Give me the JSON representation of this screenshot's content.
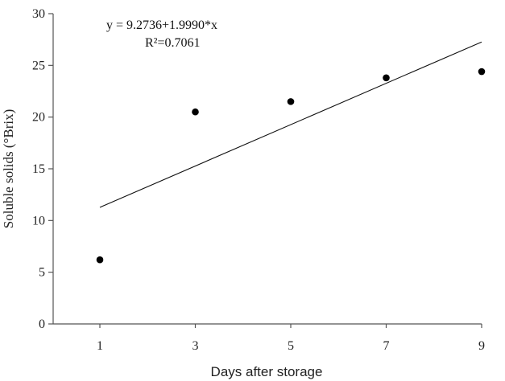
{
  "chart_data": {
    "type": "scatter",
    "title": "",
    "xlabel": "Days after storage",
    "ylabel": "Soluble solids (°Brix)",
    "xlim": [
      0,
      9
    ],
    "ylim": [
      0,
      30
    ],
    "xticks": [
      1,
      3,
      5,
      7,
      9
    ],
    "yticks": [
      0,
      5,
      10,
      15,
      20,
      25,
      30
    ],
    "grid": false,
    "legend": null,
    "series": [
      {
        "name": "Soluble solids",
        "marker": "filled-circle",
        "color": "#000000",
        "x": [
          1,
          3,
          5,
          7,
          9
        ],
        "y": [
          6.2,
          20.5,
          21.5,
          23.8,
          24.4
        ]
      }
    ],
    "regression": {
      "type": "linear",
      "intercept": 9.2736,
      "slope": 1.999,
      "r_squared": 0.7061,
      "x_range": [
        1,
        9
      ]
    },
    "annotations": [
      "y = 9.2736+1.9990*x",
      "R²=0.7061"
    ]
  },
  "labels": {
    "xlabel": "Days after storage",
    "ylabel": "Soluble solids (°Brix)",
    "equation": "y = 9.2736+1.9990*x",
    "r2": "R²=0.7061"
  }
}
